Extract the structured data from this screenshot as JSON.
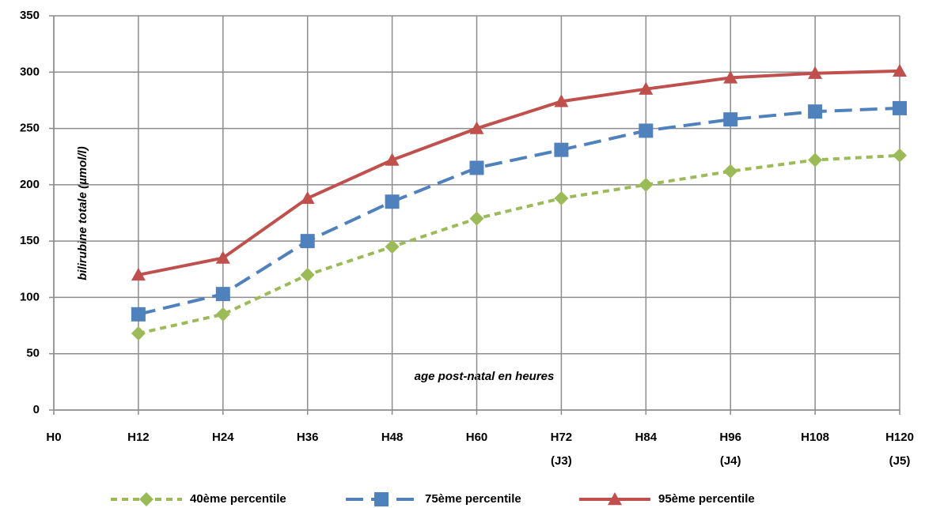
{
  "chart_data": {
    "type": "line",
    "y_label": "bilirubine totale (µmol/l)",
    "x_label": "age post-natal en heures",
    "categories": [
      [
        "H0"
      ],
      [
        "H12"
      ],
      [
        "H24"
      ],
      [
        "H36"
      ],
      [
        "H48"
      ],
      [
        "H60"
      ],
      [
        "H72",
        "(J3)"
      ],
      [
        "H84"
      ],
      [
        "H96",
        "(J4)"
      ],
      [
        "H108"
      ],
      [
        "H120",
        "(J5)"
      ]
    ],
    "series": [
      {
        "name": "40ème percentile",
        "color": "#9bbb59",
        "marker": "diamond",
        "dash": "short",
        "values": [
          null,
          68,
          85,
          120,
          145,
          170,
          188,
          200,
          212,
          222,
          226
        ]
      },
      {
        "name": "75ème percentile",
        "color": "#4f81bd",
        "marker": "square",
        "dash": "long",
        "values": [
          null,
          85,
          103,
          150,
          185,
          215,
          231,
          248,
          258,
          265,
          268
        ]
      },
      {
        "name": "95ème percentile",
        "color": "#c0504d",
        "marker": "triangle",
        "dash": "solid",
        "values": [
          null,
          120,
          135,
          188,
          222,
          250,
          274,
          285,
          295,
          299,
          301
        ]
      }
    ],
    "ylim": [
      0,
      350
    ],
    "yticks": [
      0,
      50,
      100,
      150,
      200,
      250,
      300,
      350
    ],
    "grid": true,
    "legend": "bottom"
  }
}
